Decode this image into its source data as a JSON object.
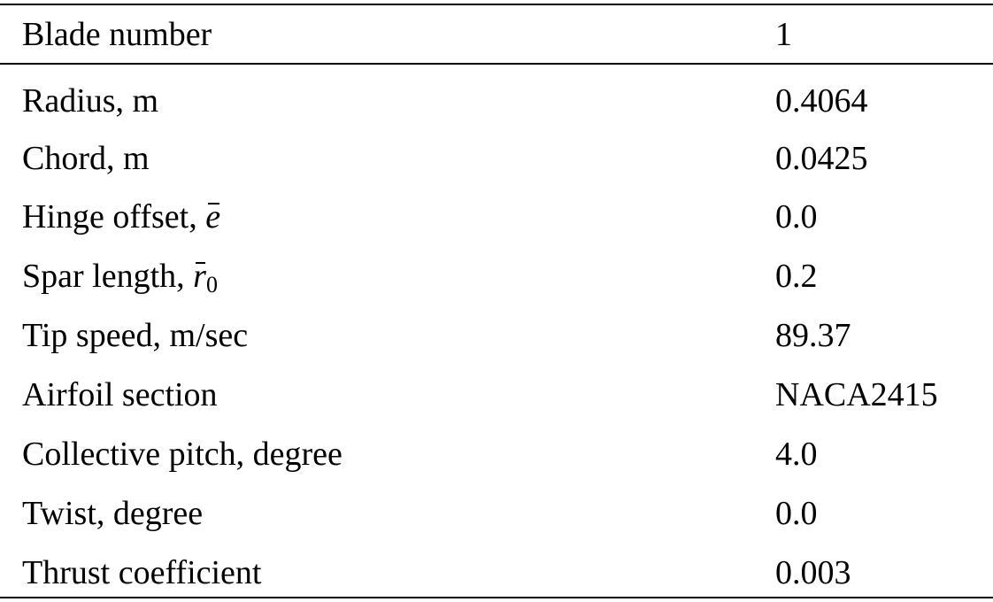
{
  "header": {
    "param": "Blade number",
    "value": "1"
  },
  "rows": [
    {
      "param": "Radius, m",
      "value": "0.4064"
    },
    {
      "param": "Chord, m",
      "value": "0.0425"
    },
    {
      "param_prefix": "Hinge offset, ",
      "symbol": "e",
      "value": "0.0"
    },
    {
      "param_prefix": "Spar length, ",
      "symbol": "r",
      "subscript": "0",
      "value": "0.2"
    },
    {
      "param": "Tip speed, m/sec",
      "value": "89.37"
    },
    {
      "param": "Airfoil section",
      "value": "NACA2415"
    },
    {
      "param": "Collective pitch, degree",
      "value": "4.0"
    },
    {
      "param": "Twist, degree",
      "value": "0.0"
    },
    {
      "param": "Thrust coefficient",
      "value": "0.003"
    }
  ]
}
